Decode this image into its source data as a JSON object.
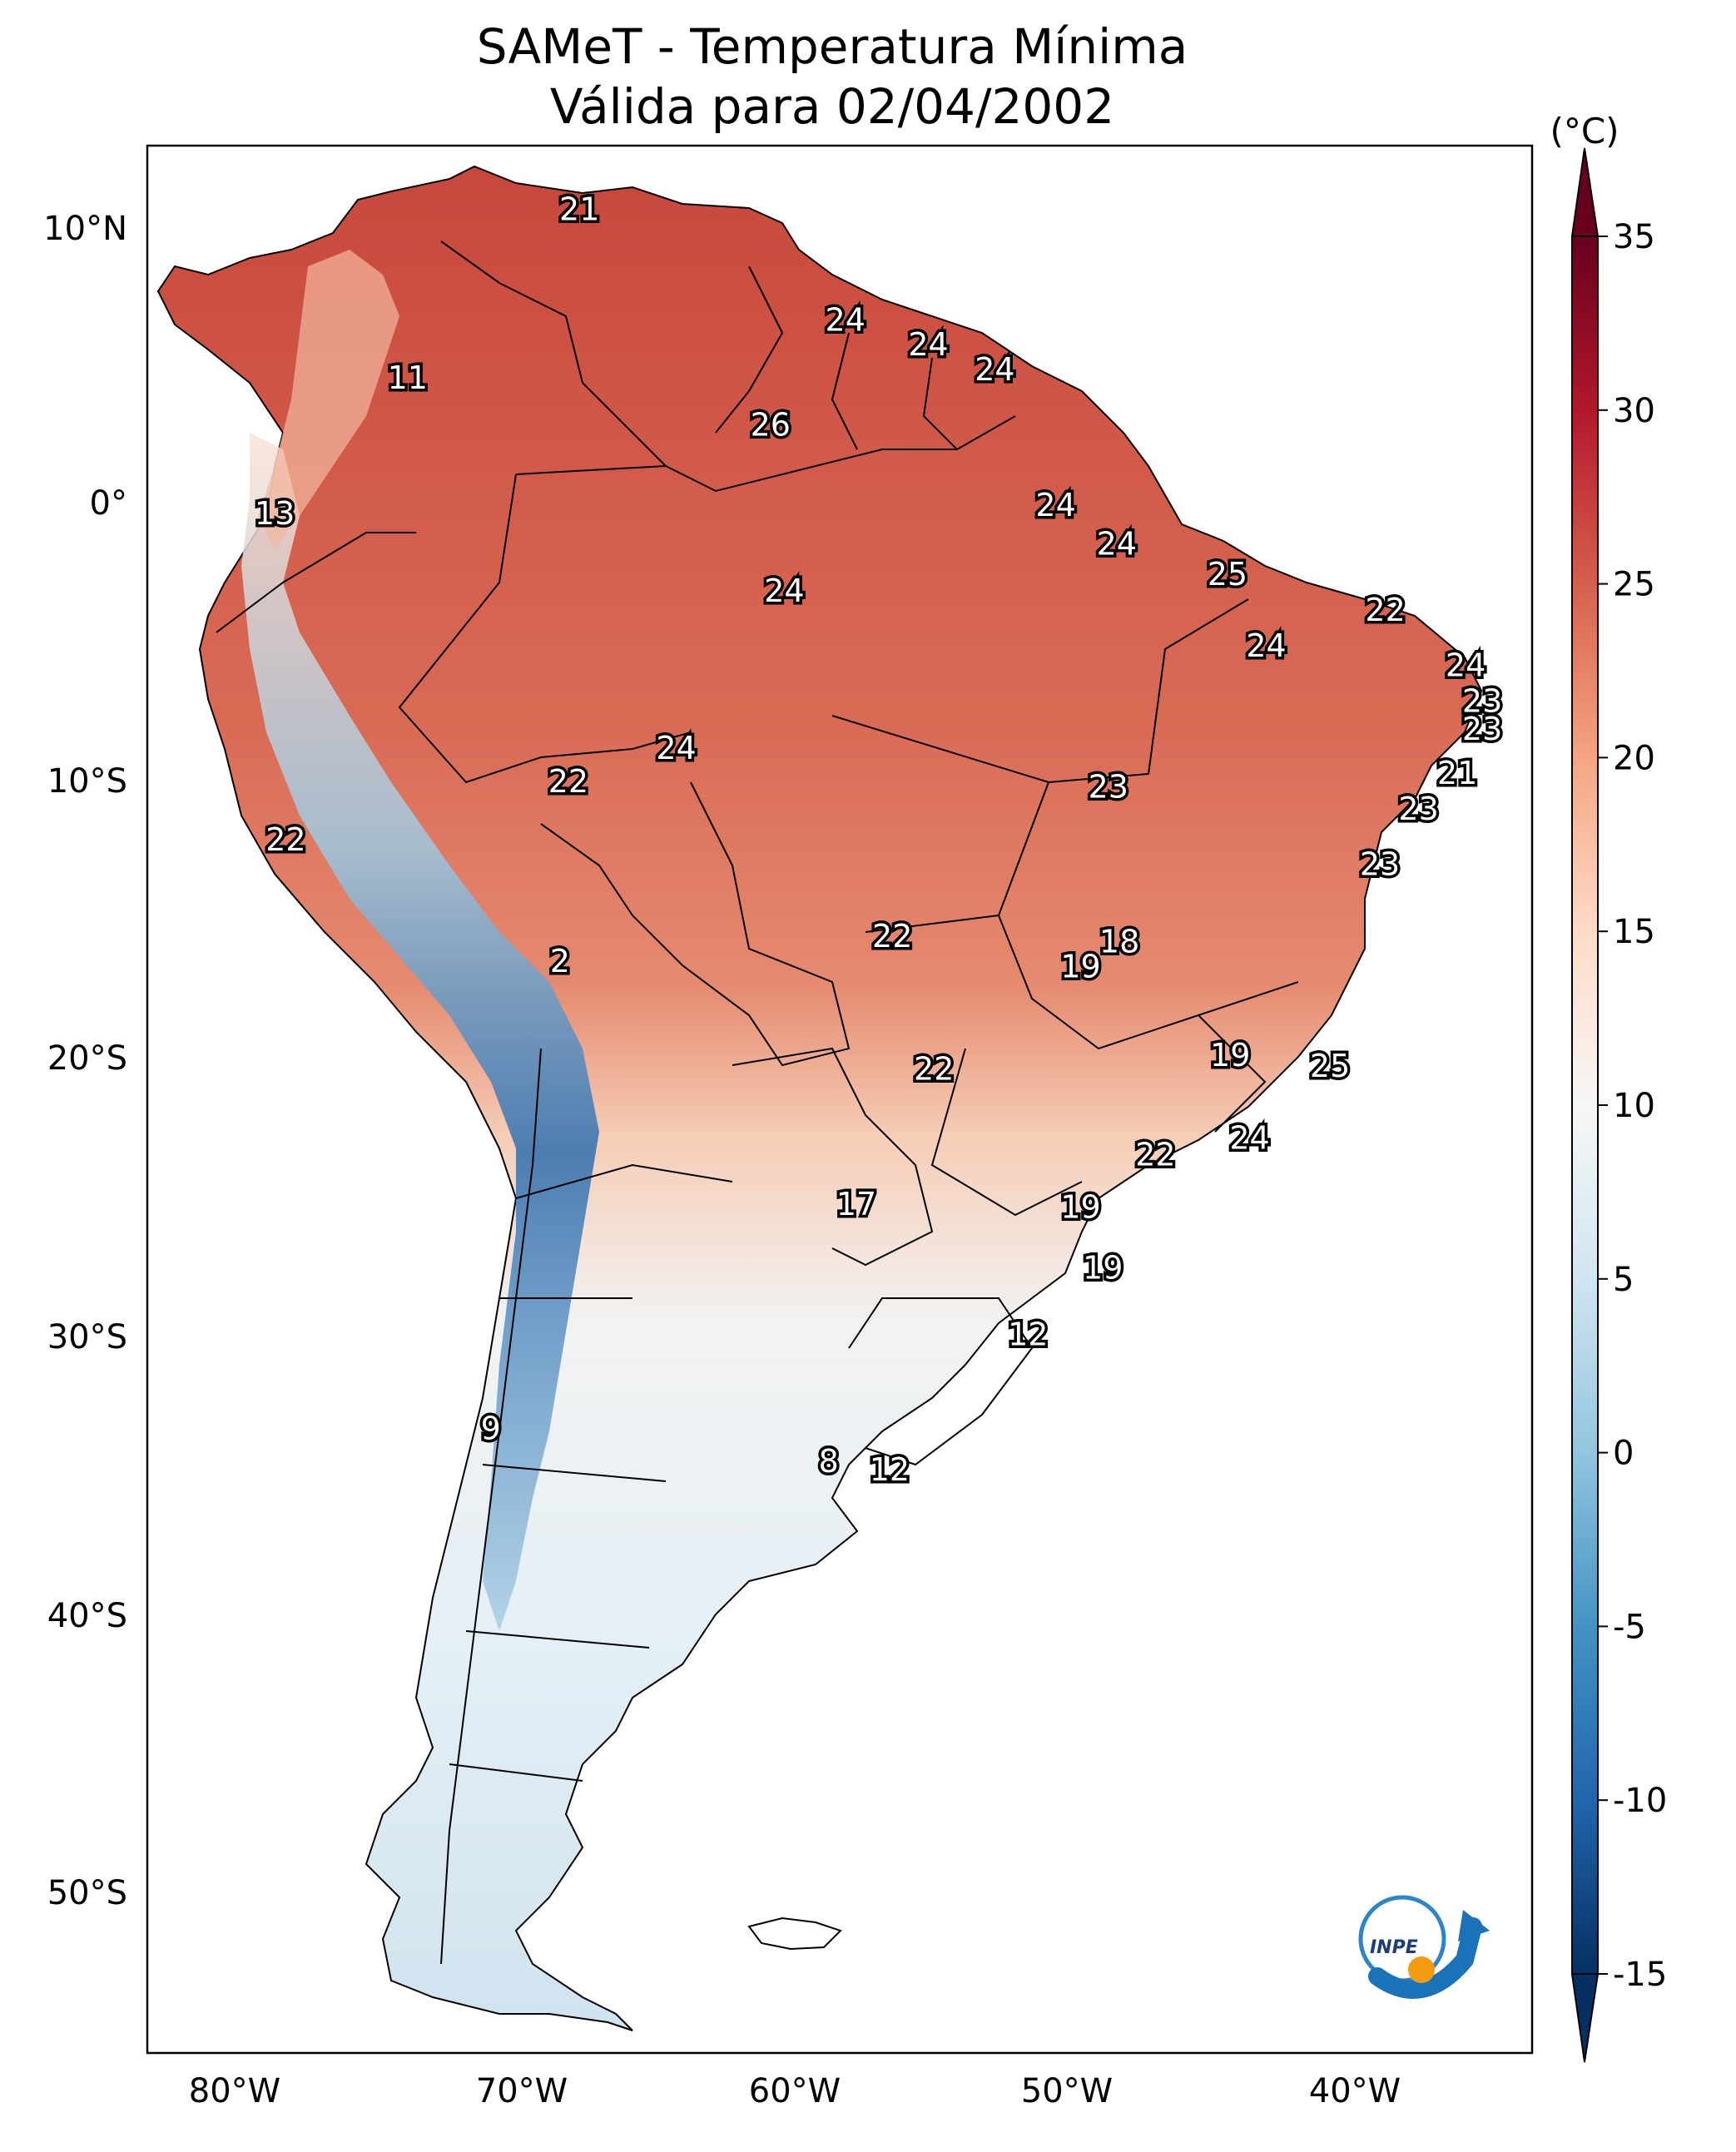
{
  "title": {
    "line1": "SAMeT - Temperatura Mínima",
    "line2": "Válida para 02/04/2002"
  },
  "map": {
    "lon_ticks": [
      "80°W",
      "70°W",
      "60°W",
      "50°W",
      "40°W"
    ],
    "lat_ticks": [
      "10°N",
      "0°",
      "10°S",
      "20°S",
      "30°S",
      "40°S",
      "50°S"
    ],
    "lon_range": [
      -83,
      -33
    ],
    "lat_range": [
      -56,
      13
    ],
    "logo_text": "INPE"
  },
  "colorbar": {
    "unit": "(°C)",
    "tick_labels": [
      "35",
      "30",
      "25",
      "20",
      "15",
      "10",
      "5",
      "0",
      "-5",
      "-10",
      "-15"
    ],
    "tick_values": [
      35,
      30,
      25,
      20,
      15,
      10,
      5,
      0,
      -5,
      -10,
      -15
    ],
    "range": [
      -15,
      35
    ],
    "colors_bottom_to_top": [
      "#053061",
      "#2166ac",
      "#4393c3",
      "#92c5de",
      "#d1e5f0",
      "#f7f7f7",
      "#fddbc7",
      "#f4a582",
      "#d6604d",
      "#b2182b",
      "#67001f"
    ]
  },
  "station_values": [
    {
      "text": "21",
      "lon": -67.4,
      "lat": 10.7
    },
    {
      "text": "11",
      "lon": -73.6,
      "lat": 4.6
    },
    {
      "text": "13",
      "lon": -78.4,
      "lat": -0.3
    },
    {
      "text": "24",
      "lon": -57.8,
      "lat": 6.7
    },
    {
      "text": "24",
      "lon": -54.8,
      "lat": 5.8
    },
    {
      "text": "24",
      "lon": -52.4,
      "lat": 4.9
    },
    {
      "text": "26",
      "lon": -60.5,
      "lat": 2.9
    },
    {
      "text": "24",
      "lon": -50.2,
      "lat": 0.0
    },
    {
      "text": "24",
      "lon": -48.0,
      "lat": -1.4
    },
    {
      "text": "24",
      "lon": -60.0,
      "lat": -3.1
    },
    {
      "text": "25",
      "lon": -44.0,
      "lat": -2.5
    },
    {
      "text": "22",
      "lon": -38.3,
      "lat": -3.8
    },
    {
      "text": "24",
      "lon": -42.6,
      "lat": -5.1
    },
    {
      "text": "24",
      "lon": -35.4,
      "lat": -5.8
    },
    {
      "text": "23",
      "lon": -34.8,
      "lat": -7.1
    },
    {
      "text": "23",
      "lon": -34.8,
      "lat": -8.1
    },
    {
      "text": "21",
      "lon": -35.7,
      "lat": -9.7
    },
    {
      "text": "24",
      "lon": -63.9,
      "lat": -8.8
    },
    {
      "text": "22",
      "lon": -67.8,
      "lat": -10.0
    },
    {
      "text": "23",
      "lon": -48.3,
      "lat": -10.2
    },
    {
      "text": "23",
      "lon": -37.1,
      "lat": -11.0
    },
    {
      "text": "22",
      "lon": -78.0,
      "lat": -12.1
    },
    {
      "text": "23",
      "lon": -38.5,
      "lat": -13.0
    },
    {
      "text": "22",
      "lon": -56.1,
      "lat": -15.6
    },
    {
      "text": "18",
      "lon": -47.9,
      "lat": -15.8
    },
    {
      "text": "19",
      "lon": -49.3,
      "lat": -16.7
    },
    {
      "text": "2",
      "lon": -68.1,
      "lat": -16.5
    },
    {
      "text": "19",
      "lon": -43.9,
      "lat": -19.9
    },
    {
      "text": "25",
      "lon": -40.3,
      "lat": -20.3
    },
    {
      "text": "22",
      "lon": -54.6,
      "lat": -20.4
    },
    {
      "text": "24",
      "lon": -43.2,
      "lat": -22.9
    },
    {
      "text": "22",
      "lon": -46.6,
      "lat": -23.5
    },
    {
      "text": "17",
      "lon": -57.4,
      "lat": -25.3
    },
    {
      "text": "19",
      "lon": -49.3,
      "lat": -25.4
    },
    {
      "text": "19",
      "lon": -48.5,
      "lat": -27.6
    },
    {
      "text": "12",
      "lon": -51.2,
      "lat": -30.0
    },
    {
      "text": "9",
      "lon": -70.6,
      "lat": -33.4
    },
    {
      "text": "8",
      "lon": -58.4,
      "lat": -34.6
    },
    {
      "text": "12",
      "lon": -56.2,
      "lat": -34.9
    }
  ]
}
